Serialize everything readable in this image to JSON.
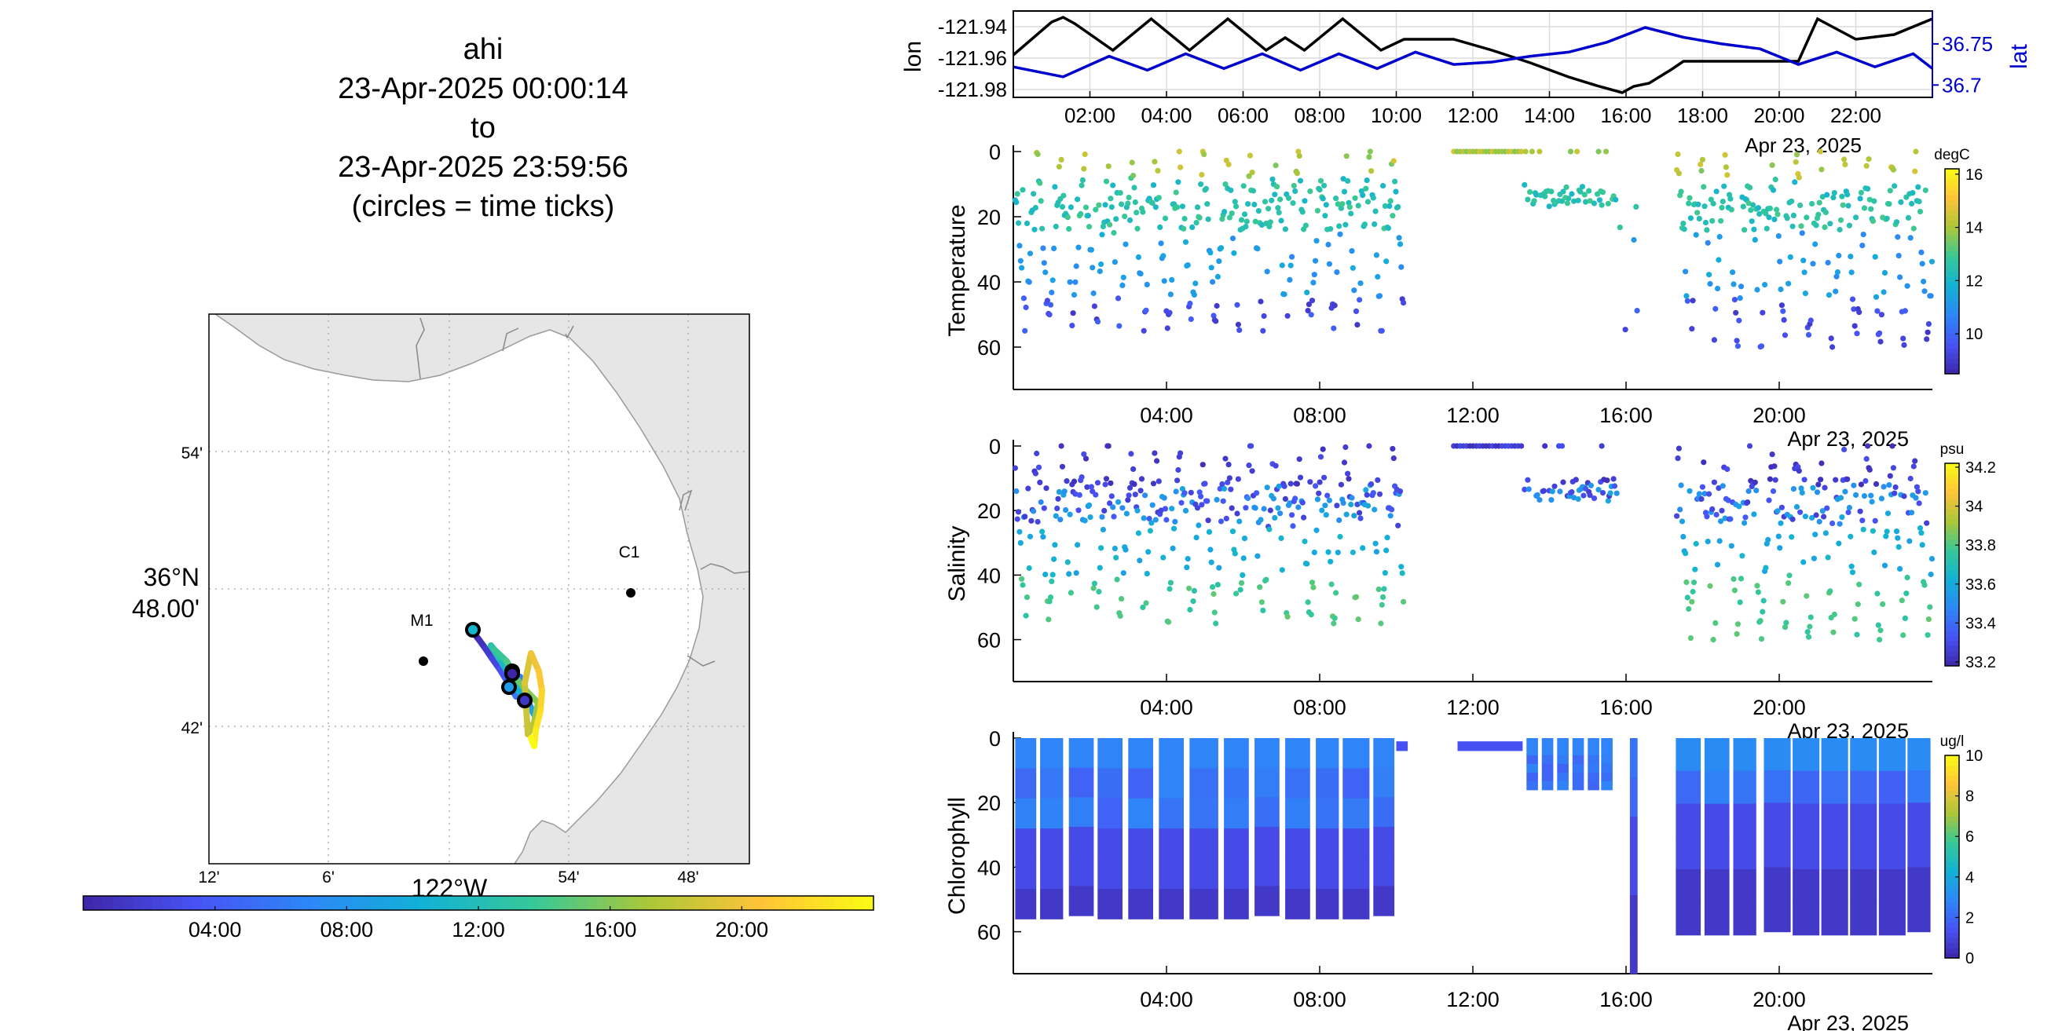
{
  "title": {
    "lines": [
      "ahi",
      "23-Apr-2025 00:00:14",
      "to",
      "23-Apr-2025 23:59:56",
      "(circles = time ticks)"
    ]
  },
  "colors": {
    "lon": "#000000",
    "lat": "#0000cc",
    "coast_fill": "#e6e6e6",
    "coast_stroke": "#9a9a9a",
    "grid": "#b0b0b0"
  },
  "colormap": "parula",
  "chart_data": [
    {
      "type": "line",
      "name": "position-timeseries",
      "xlabel": "",
      "xlim_hours": [
        0,
        24
      ],
      "x_tick_labels": [
        "02:00",
        "04:00",
        "06:00",
        "08:00",
        "10:00",
        "12:00",
        "14:00",
        "16:00",
        "18:00",
        "20:00",
        "22:00"
      ],
      "x_tick_hours": [
        2,
        4,
        6,
        8,
        10,
        12,
        14,
        16,
        18,
        20,
        22
      ],
      "date_label": "Apr 23, 2025",
      "left_axis": {
        "label": "lon",
        "ylim": [
          -121.985,
          -121.93
        ],
        "ticks": [
          -121.94,
          -121.96,
          -121.98
        ],
        "tick_labels": [
          "-121.94",
          "-121.96",
          "-121.98"
        ]
      },
      "right_axis": {
        "label": "lat",
        "ylim": [
          36.685,
          36.79
        ],
        "ticks": [
          36.75,
          36.7
        ],
        "tick_labels": [
          "36.75",
          "36.7"
        ]
      },
      "series": [
        {
          "name": "lon",
          "axis": "left",
          "x": [
            0,
            1.0,
            1.3,
            1.6,
            2.6,
            3.6,
            4.6,
            5.6,
            6.6,
            7.1,
            7.6,
            8.6,
            9.6,
            10.2,
            11.5,
            12.5,
            13.5,
            14.5,
            15.3,
            15.9,
            16.2,
            16.6,
            17.2,
            17.5,
            18.5,
            19.5,
            20.5,
            21.0,
            22.0,
            23.0,
            24.0
          ],
          "y": [
            -121.958,
            -121.937,
            -121.934,
            -121.938,
            -121.955,
            -121.935,
            -121.955,
            -121.935,
            -121.955,
            -121.947,
            -121.955,
            -121.935,
            -121.955,
            -121.948,
            -121.948,
            -121.955,
            -121.963,
            -121.972,
            -121.978,
            -121.982,
            -121.978,
            -121.976,
            -121.967,
            -121.962,
            -121.962,
            -121.962,
            -121.962,
            -121.935,
            -121.948,
            -121.945,
            -121.935
          ]
        },
        {
          "name": "lat",
          "axis": "right",
          "x": [
            0,
            1.3,
            2.5,
            3.5,
            4.5,
            5.5,
            6.5,
            7.5,
            8.5,
            9.5,
            10.5,
            11.5,
            12.5,
            13.5,
            14.5,
            15.5,
            16.5,
            17.5,
            18.5,
            19.5,
            20.5,
            21.5,
            22.5,
            23.5,
            24.0
          ],
          "y": [
            36.722,
            36.71,
            36.735,
            36.718,
            36.738,
            36.72,
            36.738,
            36.718,
            36.738,
            36.72,
            36.74,
            36.725,
            36.728,
            36.735,
            36.74,
            36.752,
            36.77,
            36.758,
            36.75,
            36.744,
            36.725,
            36.74,
            36.722,
            36.738,
            36.72
          ]
        }
      ]
    },
    {
      "type": "scatter",
      "name": "temperature-profile",
      "ylabel": "Temperature",
      "xlim_hours": [
        0,
        24
      ],
      "x_tick_labels": [
        "04:00",
        "08:00",
        "12:00",
        "16:00",
        "20:00"
      ],
      "x_tick_hours": [
        4,
        8,
        12,
        16,
        20
      ],
      "date_label": "Apr 23, 2025",
      "ylim": [
        0,
        73
      ],
      "y_ticks": [
        0,
        20,
        40,
        60
      ],
      "y_reversed": true,
      "colorbar": {
        "label": "degC",
        "clim": [
          8.5,
          16.2
        ],
        "ticks": [
          10,
          12,
          14,
          16
        ],
        "tick_labels": [
          "10",
          "12",
          "14",
          "16"
        ]
      },
      "gaps_hours": [
        [
          10.2,
          11.5
        ],
        [
          16.3,
          17.3
        ]
      ],
      "regime": "yoyo",
      "seed": 11
    },
    {
      "type": "scatter",
      "name": "salinity-profile",
      "ylabel": "Salinity",
      "xlim_hours": [
        0,
        24
      ],
      "x_tick_labels": [
        "04:00",
        "08:00",
        "12:00",
        "16:00",
        "20:00"
      ],
      "x_tick_hours": [
        4,
        8,
        12,
        16,
        20
      ],
      "date_label": "Apr 23, 2025",
      "ylim": [
        0,
        73
      ],
      "y_ticks": [
        0,
        20,
        40,
        60
      ],
      "y_reversed": true,
      "colorbar": {
        "label": "psu",
        "clim": [
          33.18,
          34.22
        ],
        "ticks": [
          33.2,
          33.4,
          33.6,
          33.8,
          34,
          34.2
        ],
        "tick_labels": [
          "33.2",
          "33.4",
          "33.6",
          "33.8",
          "34",
          "34.2"
        ]
      },
      "gaps_hours": [
        [
          10.2,
          11.5
        ],
        [
          16.3,
          17.3
        ]
      ],
      "regime": "yoyo",
      "seed": 23
    },
    {
      "type": "heatmap",
      "name": "chlorophyll-profile",
      "ylabel": "Chlorophyll",
      "xlim_hours": [
        0,
        24
      ],
      "x_tick_labels": [
        "04:00",
        "08:00",
        "12:00",
        "16:00",
        "20:00"
      ],
      "x_tick_hours": [
        4,
        8,
        12,
        16,
        20
      ],
      "date_label": "Apr 23, 2025",
      "ylim": [
        0,
        73
      ],
      "y_ticks": [
        0,
        20,
        40,
        60
      ],
      "y_reversed": true,
      "colorbar": {
        "label": "ug/l",
        "clim": [
          0,
          10
        ],
        "ticks": [
          0,
          2,
          4,
          6,
          8,
          10
        ],
        "tick_labels": [
          "0",
          "2",
          "4",
          "6",
          "8",
          "10"
        ]
      },
      "casts": [
        {
          "x": [
            0.05,
            0.6
          ],
          "depth": 56
        },
        {
          "x": [
            0.7,
            1.3
          ],
          "depth": 56
        },
        {
          "x": [
            1.45,
            2.1
          ],
          "depth": 55
        },
        {
          "x": [
            2.2,
            2.85
          ],
          "depth": 56
        },
        {
          "x": [
            3.0,
            3.65
          ],
          "depth": 56
        },
        {
          "x": [
            3.8,
            4.45
          ],
          "depth": 56
        },
        {
          "x": [
            4.6,
            5.35
          ],
          "depth": 56
        },
        {
          "x": [
            5.5,
            6.15
          ],
          "depth": 56
        },
        {
          "x": [
            6.3,
            6.95
          ],
          "depth": 55
        },
        {
          "x": [
            7.1,
            7.75
          ],
          "depth": 56
        },
        {
          "x": [
            7.9,
            8.5
          ],
          "depth": 56
        },
        {
          "x": [
            8.6,
            9.3
          ],
          "depth": 56
        },
        {
          "x": [
            9.4,
            9.95
          ],
          "depth": 55
        },
        {
          "x": [
            13.4,
            13.7
          ],
          "depth": 16
        },
        {
          "x": [
            13.8,
            14.1
          ],
          "depth": 16
        },
        {
          "x": [
            14.2,
            14.5
          ],
          "depth": 16
        },
        {
          "x": [
            14.6,
            14.9
          ],
          "depth": 16
        },
        {
          "x": [
            15.0,
            15.3
          ],
          "depth": 16
        },
        {
          "x": [
            15.35,
            15.65
          ],
          "depth": 16
        },
        {
          "x": [
            16.1,
            16.3
          ],
          "depth": 73
        },
        {
          "x": [
            17.3,
            17.95
          ],
          "depth": 61
        },
        {
          "x": [
            18.05,
            18.7
          ],
          "depth": 61
        },
        {
          "x": [
            18.8,
            19.4
          ],
          "depth": 61
        },
        {
          "x": [
            19.6,
            20.3
          ],
          "depth": 60
        },
        {
          "x": [
            20.35,
            21.05
          ],
          "depth": 61
        },
        {
          "x": [
            21.1,
            21.8
          ],
          "depth": 61
        },
        {
          "x": [
            21.85,
            22.55
          ],
          "depth": 61
        },
        {
          "x": [
            22.6,
            23.3
          ],
          "depth": 61
        },
        {
          "x": [
            23.35,
            23.95
          ],
          "depth": 60
        }
      ],
      "surface_segments": [
        [
          10.0,
          10.3
        ],
        [
          11.6,
          13.3
        ]
      ]
    },
    {
      "type": "line",
      "name": "track-map",
      "x_tick_labels": [
        "12'",
        "6'",
        "54'",
        "48'"
      ],
      "x_center_label": "122°W",
      "y_tick_labels": [
        "54'",
        "42'"
      ],
      "y_center_label_lines": [
        "36°N",
        "48.00'"
      ],
      "stations": [
        {
          "name": "C1"
        },
        {
          "name": "M1"
        }
      ],
      "colorbar": {
        "tick_labels": [
          "04:00",
          "08:00",
          "12:00",
          "16:00",
          "20:00"
        ],
        "tick_hours": [
          4,
          8,
          12,
          16,
          20
        ],
        "clim_hours": [
          0,
          24
        ]
      }
    }
  ]
}
